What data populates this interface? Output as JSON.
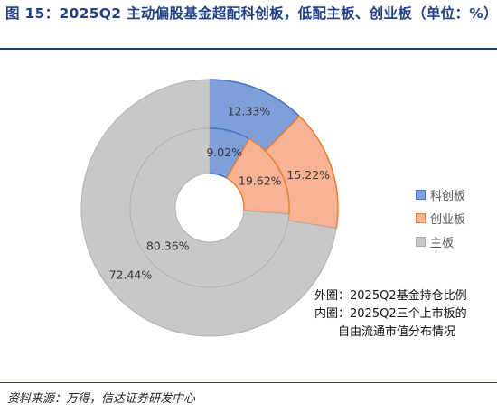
{
  "title": "图 15：2025Q2 主动偏股基金超配科创板，低配主板、创业板（单位：%）",
  "source": "资料来源：万得，信达证券研发中心",
  "note_lines": [
    "外圈：2025Q2基金持仓比例",
    "内圈：2025Q2三个上市板的",
    "自由流通市值分布情况"
  ],
  "colors": {
    "科创板": {
      "fill": "#7f9fda",
      "stroke": "#4472c4"
    },
    "创业板": {
      "fill": "#f8b394",
      "stroke": "#ed7d31"
    },
    "主板": {
      "fill": "#c8c8c8",
      "stroke": "#a5a5a5"
    },
    "title": "#1f3f86"
  },
  "chart_data": {
    "type": "pie",
    "subtype": "nested-donut",
    "legend": [
      "科创板",
      "创业板",
      "主板"
    ],
    "legend_position": "right",
    "rings": [
      {
        "ring": "outer",
        "label": "外圈：2025Q2基金持仓比例",
        "slices": [
          {
            "name": "科创板",
            "value": 12.33,
            "label": "12.33%"
          },
          {
            "name": "创业板",
            "value": 15.22,
            "label": "15.22%"
          },
          {
            "name": "主板",
            "value": 72.44,
            "label": "72.44%"
          }
        ]
      },
      {
        "ring": "inner",
        "label": "内圈：2025Q2三个上市板的自由流通市值分布情况",
        "slices": [
          {
            "name": "科创板",
            "value": 9.02,
            "label": "9.02%"
          },
          {
            "name": "创业板",
            "value": 19.62,
            "label": "19.62%"
          },
          {
            "name": "主板",
            "value": 80.36,
            "label": "80.36%"
          }
        ]
      }
    ]
  }
}
